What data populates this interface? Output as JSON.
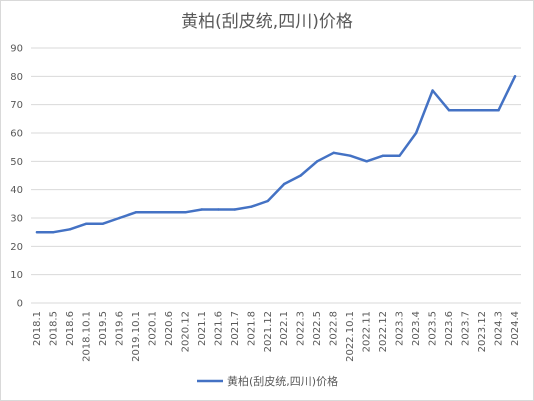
{
  "chart_data": {
    "type": "line",
    "title": "黄柏(刮皮统,四川)价格",
    "xlabel": "",
    "ylabel": "",
    "ylim": [
      0,
      90
    ],
    "yticks": [
      0,
      10,
      20,
      30,
      40,
      50,
      60,
      70,
      80,
      90
    ],
    "grid": true,
    "legend_position": "bottom",
    "categories": [
      "2018.1",
      "2018.5",
      "2018.6",
      "2018.10.1",
      "2019.5",
      "2019.6",
      "2019.10.1",
      "2020.1",
      "2020.6",
      "2020.12",
      "2021.1",
      "2021.6",
      "2021.7",
      "2021.8",
      "2021.12",
      "2022.1",
      "2022.3",
      "2022.5",
      "2022.8",
      "2022.10.1",
      "2022.11",
      "2022.12",
      "2023.3",
      "2023.4",
      "2023.5",
      "2023.6",
      "2023.7",
      "2023.12",
      "2024.3",
      "2024.4"
    ],
    "series": [
      {
        "name": "黄柏(刮皮统,四川)价格",
        "color": "#4472c4",
        "values": [
          25,
          25,
          26,
          28,
          28,
          30,
          32,
          32,
          32,
          32,
          33,
          33,
          33,
          34,
          36,
          42,
          45,
          50,
          53,
          52,
          50,
          52,
          52,
          60,
          75,
          68,
          68,
          68,
          68,
          80
        ]
      }
    ]
  }
}
